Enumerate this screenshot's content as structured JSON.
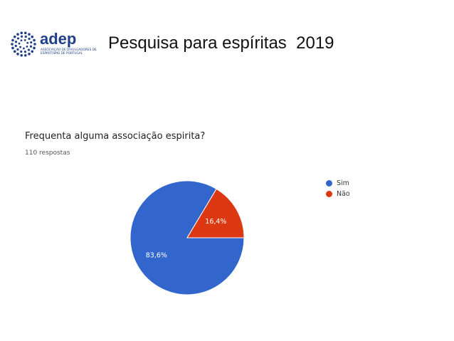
{
  "logo": {
    "word": "adep",
    "subtitle": "Associação de Divulgadores de Espiritismo de Portugal",
    "color": "#1f3f8a"
  },
  "header": {
    "title": "Pesquisa para espíritas  2019"
  },
  "chart_data": {
    "type": "pie",
    "title": "Frequenta alguma associação espirita?",
    "subtitle": "110 respostas",
    "categories": [
      "Sim",
      "Não"
    ],
    "values": [
      83.6,
      16.4
    ],
    "value_labels": [
      "83,6%",
      "16,4%"
    ],
    "colors": [
      "#3366cc",
      "#dc3912"
    ],
    "legend_position": "right"
  }
}
